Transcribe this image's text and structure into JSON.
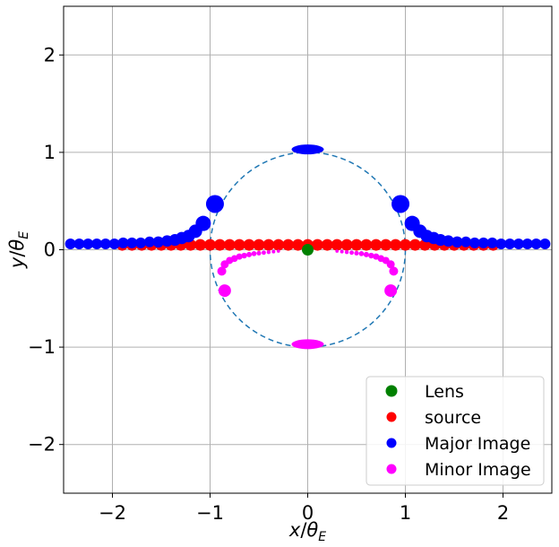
{
  "chart_data": {
    "type": "scatter",
    "xlabel": {
      "var": "x",
      "sub": "E"
    },
    "ylabel": {
      "var": "y",
      "sub": "E"
    },
    "xlim": [
      -2.5,
      2.5
    ],
    "ylim": [
      -2.5,
      2.5
    ],
    "x_ticks": [
      -2,
      -1,
      0,
      1,
      2
    ],
    "y_ticks": [
      -2,
      -1,
      0,
      1,
      2
    ],
    "grid": true,
    "legend_position": "lower-right",
    "einstein_ring": {
      "radius": 1.0,
      "style": "dashed",
      "color": "#1f77b4"
    },
    "lens": {
      "name": "Lens",
      "color": "#008000",
      "points": [
        [
          0,
          0
        ]
      ]
    },
    "series": [
      {
        "name": "source",
        "color": "#ff0000",
        "points": [
          [
            -1.9,
            0.05
          ],
          [
            -1.8,
            0.05
          ],
          [
            -1.7,
            0.05
          ],
          [
            -1.6,
            0.05
          ],
          [
            -1.5,
            0.05
          ],
          [
            -1.4,
            0.05
          ],
          [
            -1.3,
            0.05
          ],
          [
            -1.2,
            0.05
          ],
          [
            -1.1,
            0.05
          ],
          [
            -1.0,
            0.05
          ],
          [
            -0.9,
            0.05
          ],
          [
            -0.8,
            0.05
          ],
          [
            -0.7,
            0.05
          ],
          [
            -0.6,
            0.05
          ],
          [
            -0.5,
            0.05
          ],
          [
            -0.4,
            0.05
          ],
          [
            -0.3,
            0.05
          ],
          [
            -0.2,
            0.05
          ],
          [
            -0.1,
            0.05
          ],
          [
            0.0,
            0.05
          ],
          [
            0.1,
            0.05
          ],
          [
            0.2,
            0.05
          ],
          [
            0.3,
            0.05
          ],
          [
            0.4,
            0.05
          ],
          [
            0.5,
            0.05
          ],
          [
            0.6,
            0.05
          ],
          [
            0.7,
            0.05
          ],
          [
            0.8,
            0.05
          ],
          [
            0.9,
            0.05
          ],
          [
            1.0,
            0.05
          ],
          [
            1.1,
            0.05
          ],
          [
            1.2,
            0.05
          ],
          [
            1.3,
            0.05
          ],
          [
            1.4,
            0.05
          ],
          [
            1.5,
            0.05
          ],
          [
            1.6,
            0.05
          ],
          [
            1.7,
            0.05
          ],
          [
            1.8,
            0.05
          ],
          [
            1.9,
            0.05
          ]
        ],
        "sizes": [
          6.5,
          6.5,
          6.5,
          6.5,
          6.5,
          6.5,
          6.5,
          6.5,
          6.5,
          6.5,
          6.5,
          6.5,
          6.5,
          6.5,
          6.5,
          6.5,
          6.5,
          6.5,
          6.5,
          6.5,
          6.5,
          6.5,
          6.5,
          6.5,
          6.5,
          6.5,
          6.5,
          6.5,
          6.5,
          6.5,
          6.5,
          6.5,
          6.5,
          6.5,
          6.5,
          6.5,
          6.5,
          6.5,
          6.5
        ]
      },
      {
        "name": "Major Image",
        "color": "#0000ff",
        "points": [
          [
            -2.43,
            0.06
          ],
          [
            -2.34,
            0.06
          ],
          [
            -2.25,
            0.06
          ],
          [
            -2.16,
            0.06
          ],
          [
            -2.07,
            0.06
          ],
          [
            -1.98,
            0.06
          ],
          [
            -1.89,
            0.07
          ],
          [
            -1.8,
            0.07
          ],
          [
            -1.71,
            0.07
          ],
          [
            -1.62,
            0.08
          ],
          [
            -1.53,
            0.08
          ],
          [
            -1.44,
            0.09
          ],
          [
            -1.36,
            0.1
          ],
          [
            -1.29,
            0.12
          ],
          [
            -1.22,
            0.14
          ],
          [
            -1.15,
            0.19
          ],
          [
            -1.07,
            0.27
          ],
          [
            -0.95,
            0.47
          ],
          [
            0.95,
            0.47
          ],
          [
            1.07,
            0.27
          ],
          [
            1.15,
            0.19
          ],
          [
            1.22,
            0.14
          ],
          [
            1.29,
            0.12
          ],
          [
            1.36,
            0.1
          ],
          [
            1.44,
            0.09
          ],
          [
            1.53,
            0.08
          ],
          [
            1.62,
            0.08
          ],
          [
            1.71,
            0.07
          ],
          [
            1.8,
            0.07
          ],
          [
            1.89,
            0.07
          ],
          [
            1.98,
            0.06
          ],
          [
            2.07,
            0.06
          ],
          [
            2.16,
            0.06
          ],
          [
            2.25,
            0.06
          ],
          [
            2.34,
            0.06
          ],
          [
            2.43,
            0.06
          ],
          [
            0.0,
            1.03
          ]
        ],
        "sizes": [
          6,
          6,
          6,
          6,
          6,
          6,
          6,
          6,
          6,
          6,
          6.2,
          6.4,
          6.6,
          6.8,
          7,
          7.5,
          8.5,
          10,
          10,
          8.5,
          7.5,
          7,
          6.8,
          6.6,
          6.4,
          6.2,
          6,
          6,
          6,
          6,
          6,
          6,
          6,
          6,
          6,
          6,
          10
        ]
      },
      {
        "name": "Minor Image",
        "color": "#ff00ff",
        "points": [
          [
            -0.85,
            -0.42
          ],
          [
            -0.88,
            -0.22
          ],
          [
            -0.85,
            -0.15
          ],
          [
            -0.8,
            -0.11
          ],
          [
            -0.75,
            -0.09
          ],
          [
            -0.7,
            -0.07
          ],
          [
            -0.65,
            -0.06
          ],
          [
            -0.6,
            -0.05
          ],
          [
            -0.55,
            -0.04
          ],
          [
            -0.5,
            -0.035
          ],
          [
            -0.45,
            -0.03
          ],
          [
            -0.4,
            -0.025
          ],
          [
            -0.35,
            -0.02
          ],
          [
            -0.3,
            -0.015
          ],
          [
            0.3,
            -0.015
          ],
          [
            0.35,
            -0.02
          ],
          [
            0.4,
            -0.025
          ],
          [
            0.45,
            -0.03
          ],
          [
            0.5,
            -0.035
          ],
          [
            0.55,
            -0.04
          ],
          [
            0.6,
            -0.05
          ],
          [
            0.65,
            -0.06
          ],
          [
            0.7,
            -0.07
          ],
          [
            0.75,
            -0.09
          ],
          [
            0.8,
            -0.11
          ],
          [
            0.85,
            -0.15
          ],
          [
            0.88,
            -0.22
          ],
          [
            0.85,
            -0.42
          ],
          [
            0.0,
            -0.97
          ]
        ],
        "sizes": [
          7,
          5,
          4.5,
          4,
          3.8,
          3.5,
          3.2,
          3,
          2.8,
          2.6,
          2.4,
          2.2,
          2,
          1.8,
          1.8,
          2,
          2.2,
          2.4,
          2.6,
          2.8,
          3,
          3.2,
          3.5,
          3.8,
          4,
          4.5,
          5,
          7,
          7
        ]
      }
    ],
    "legend": [
      {
        "label": "Lens",
        "color": "#008000"
      },
      {
        "label": "source",
        "color": "#ff0000"
      },
      {
        "label": "Major Image",
        "color": "#0000ff"
      },
      {
        "label": "Minor Image",
        "color": "#ff00ff"
      }
    ]
  }
}
